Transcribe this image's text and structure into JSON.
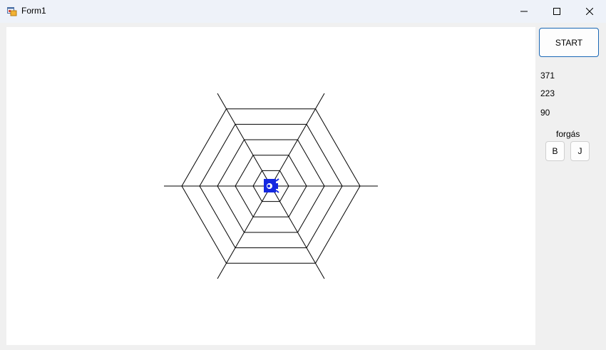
{
  "window": {
    "title": "Form1"
  },
  "controls": {
    "start_label": "START",
    "value_x": "371",
    "value_y": "223",
    "value_angle": "90",
    "rotation_label": "forgás",
    "rotate_left_label": "B",
    "rotate_right_label": "J"
  },
  "colors": {
    "titlebar_bg": "#eef2f9",
    "form_bg": "#f0f0f0",
    "canvas_bg": "#ffffff",
    "web_line": "#000000",
    "spider_color": "#1428e0",
    "accent_border": "#1a67b5"
  },
  "icons": {
    "app": "form-app-icon",
    "minimize": "minimize-icon",
    "maximize": "maximize-icon",
    "close": "close-icon",
    "spider": "spider-icon"
  }
}
